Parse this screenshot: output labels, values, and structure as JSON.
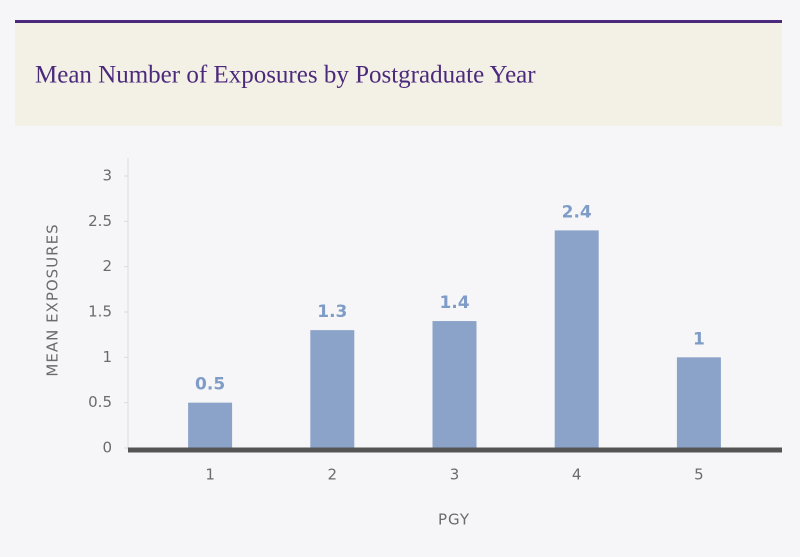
{
  "chart_data": {
    "type": "bar",
    "title": "Mean Number of Exposures by Postgraduate Year",
    "x_label": "PGY",
    "y_label": "MEAN EXPOSURES",
    "categories": [
      "1",
      "2",
      "3",
      "4",
      "5"
    ],
    "values": [
      0.5,
      1.3,
      1.4,
      2.4,
      1
    ],
    "color": "#8ba3c8",
    "ylim": [
      0,
      3
    ],
    "yticks": [
      0,
      0.5,
      1,
      1.5,
      2,
      2.5,
      3
    ]
  }
}
